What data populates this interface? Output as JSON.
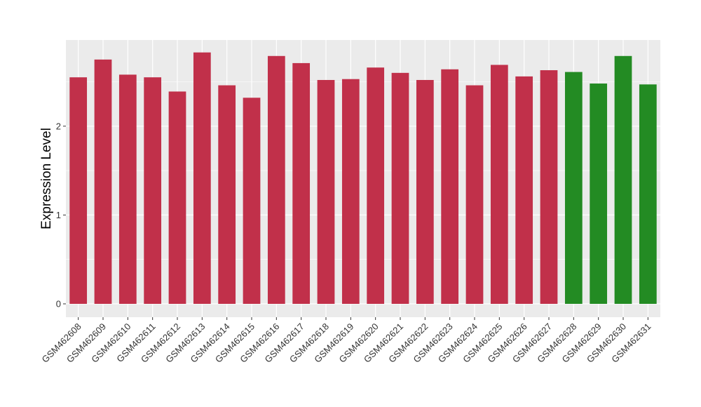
{
  "chart_data": {
    "type": "bar",
    "title": "",
    "xlabel": "",
    "ylabel": "Expression Level",
    "ylim": [
      -0.15,
      2.97
    ],
    "yticks": [
      0,
      1,
      2
    ],
    "grid": true,
    "legend": "none",
    "colors": {
      "panel": "#ebebeb",
      "grid": "#ffffff",
      "group_a": "#c1304a",
      "group_b": "#238b23"
    },
    "categories": [
      "GSM462608",
      "GSM462609",
      "GSM462610",
      "GSM462611",
      "GSM462612",
      "GSM462613",
      "GSM462614",
      "GSM462615",
      "GSM462616",
      "GSM462617",
      "GSM462618",
      "GSM462619",
      "GSM462620",
      "GSM462621",
      "GSM462622",
      "GSM462623",
      "GSM462624",
      "GSM462625",
      "GSM462626",
      "GSM462627",
      "GSM462628",
      "GSM462629",
      "GSM462630",
      "GSM462631"
    ],
    "values": [
      2.55,
      2.75,
      2.58,
      2.55,
      2.39,
      2.83,
      2.46,
      2.32,
      2.79,
      2.71,
      2.52,
      2.53,
      2.66,
      2.6,
      2.52,
      2.64,
      2.46,
      2.69,
      2.56,
      2.63,
      2.61,
      2.48,
      2.79,
      2.47
    ],
    "bar_colors": [
      "#c1304a",
      "#c1304a",
      "#c1304a",
      "#c1304a",
      "#c1304a",
      "#c1304a",
      "#c1304a",
      "#c1304a",
      "#c1304a",
      "#c1304a",
      "#c1304a",
      "#c1304a",
      "#c1304a",
      "#c1304a",
      "#c1304a",
      "#c1304a",
      "#c1304a",
      "#c1304a",
      "#c1304a",
      "#c1304a",
      "#238b23",
      "#238b23",
      "#238b23",
      "#238b23"
    ]
  }
}
